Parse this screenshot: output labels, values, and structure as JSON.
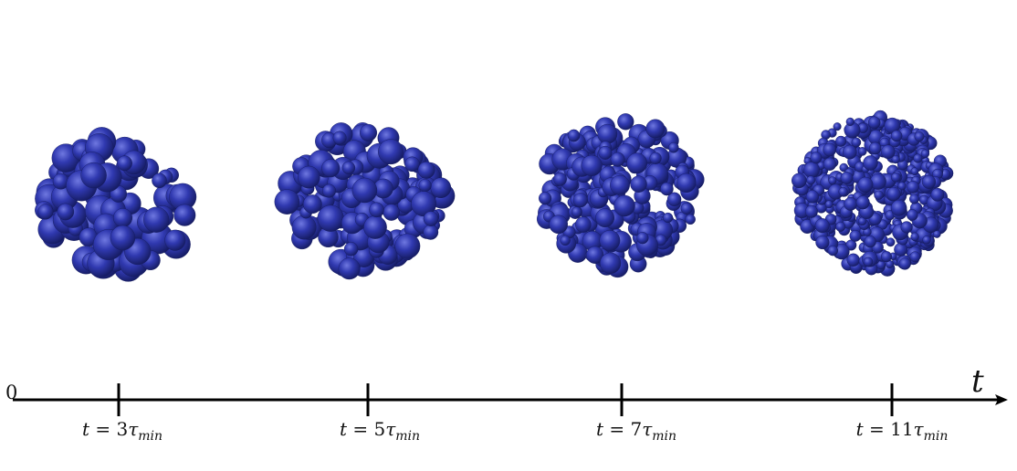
{
  "axis": {
    "origin_label": "0",
    "label": "t"
  },
  "snapshots": [
    {
      "prefix": "t = ",
      "coef": "3",
      "tau": "τ",
      "sub": "min",
      "size_scale": 1.0
    },
    {
      "prefix": "t = ",
      "coef": "5",
      "tau": "τ",
      "sub": "min",
      "size_scale": 0.82
    },
    {
      "prefix": "t = ",
      "coef": "7",
      "tau": "τ",
      "sub": "min",
      "size_scale": 0.68
    },
    {
      "prefix": "t = ",
      "coef": "11",
      "tau": "τ",
      "sub": "min",
      "size_scale": 0.5
    }
  ],
  "colors": {
    "sphere": "#2e36a8",
    "sphere_dark": "#141a5e",
    "sphere_light": "#6f78e0",
    "axis": "#000000"
  }
}
